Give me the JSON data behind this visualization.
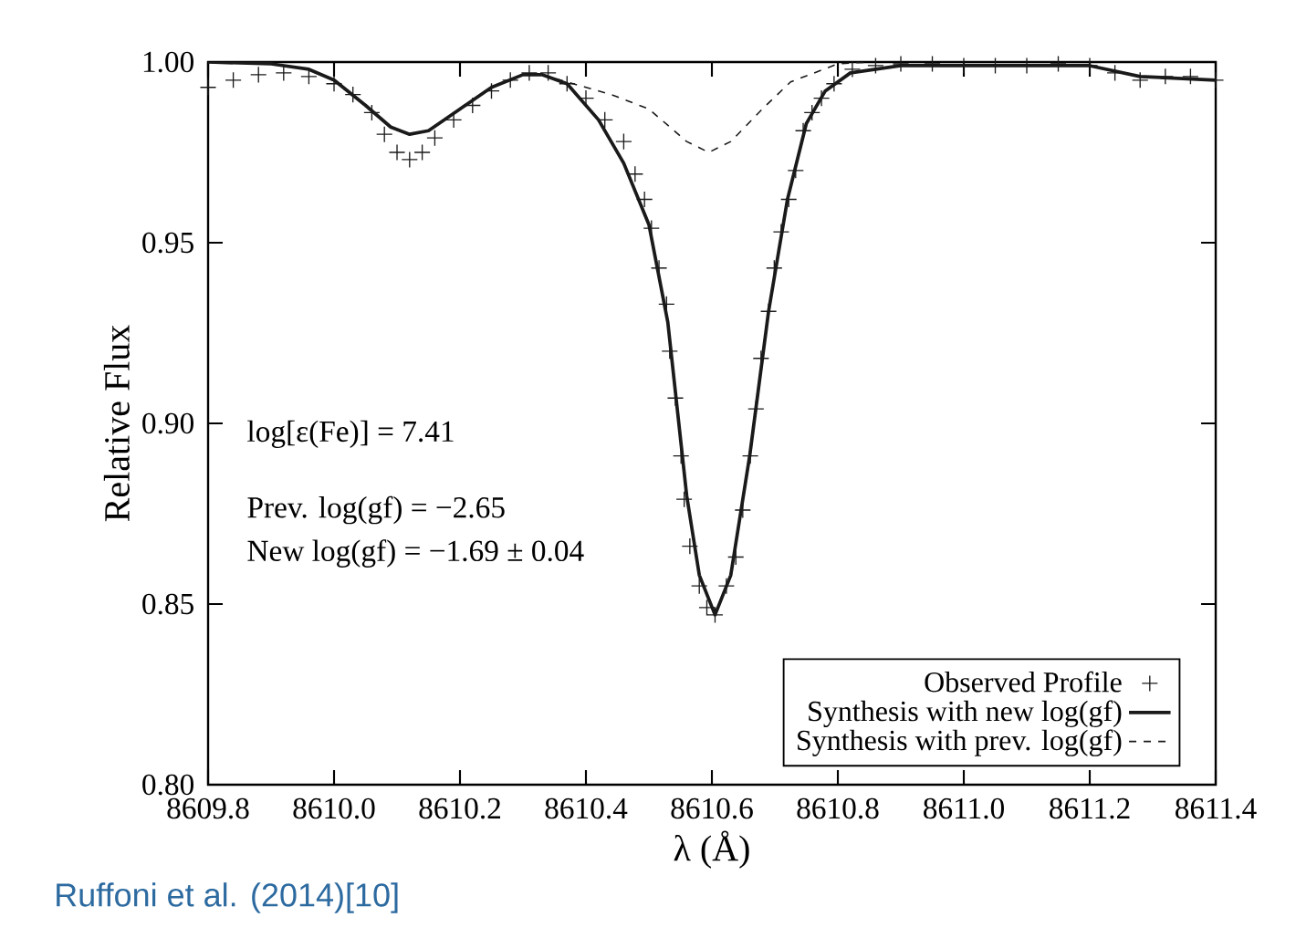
{
  "chart_data": {
    "type": "line",
    "xlabel": "λ (Å)",
    "ylabel": "Relative Flux",
    "xlim": [
      8609.8,
      8611.4
    ],
    "ylim": [
      0.8,
      1.0
    ],
    "xticks": [
      {
        "value": 8609.8,
        "label": "8609.8"
      },
      {
        "value": 8610.0,
        "label": "8610.0"
      },
      {
        "value": 8610.2,
        "label": "8610.2"
      },
      {
        "value": 8610.4,
        "label": "8610.4"
      },
      {
        "value": 8610.6,
        "label": "8610.6"
      },
      {
        "value": 8610.8,
        "label": "8610.8"
      },
      {
        "value": 8611.0,
        "label": "8611.0"
      },
      {
        "value": 8611.2,
        "label": "8611.2"
      },
      {
        "value": 8611.4,
        "label": "8611.4"
      }
    ],
    "yticks": [
      {
        "value": 0.8,
        "label": "0.80"
      },
      {
        "value": 0.85,
        "label": "0.85"
      },
      {
        "value": 0.9,
        "label": "0.90"
      },
      {
        "value": 0.95,
        "label": "0.95"
      },
      {
        "value": 1.0,
        "label": "1.00"
      }
    ],
    "legend": "bottom right",
    "annotations": [
      "log[ε(Fe)] = 7.41",
      "Prev. log(gf) = −2.65",
      "New log(gf) = −1.69 ± 0.04",
      "Ruffoni et al. (2014)[10]"
    ],
    "series": [
      {
        "name": "Observed Profile",
        "type": "scatter",
        "marker": "cross",
        "color": "#1a1a1a",
        "x": [
          8609.8,
          8609.84,
          8609.88,
          8609.92,
          8609.96,
          8610.0,
          8610.03,
          8610.06,
          8610.08,
          8610.1,
          8610.12,
          8610.14,
          8610.16,
          8610.19,
          8610.22,
          8610.25,
          8610.28,
          8610.31,
          8610.34,
          8610.37,
          8610.4,
          8610.43,
          8610.46,
          8610.478,
          8610.493,
          8610.504,
          8610.516,
          8610.528,
          8610.533,
          8610.542,
          8610.551,
          8610.556,
          8610.565,
          8610.58,
          8610.592,
          8610.605,
          8610.623,
          8610.638,
          8610.649,
          8610.661,
          8610.67,
          8610.678,
          8610.69,
          8610.699,
          8610.71,
          8610.722,
          8610.733,
          8610.745,
          8610.759,
          8610.774,
          8610.794,
          8610.823,
          8610.86,
          8610.9,
          8610.95,
          8611.0,
          8611.05,
          8611.1,
          8611.15,
          8611.2,
          8611.24,
          8611.28,
          8611.32,
          8611.36,
          8611.4
        ],
        "values": [
          0.993,
          0.995,
          0.9965,
          0.997,
          0.996,
          0.994,
          0.991,
          0.986,
          0.98,
          0.975,
          0.973,
          0.975,
          0.979,
          0.984,
          0.988,
          0.992,
          0.995,
          0.997,
          0.997,
          0.994,
          0.99,
          0.984,
          0.978,
          0.969,
          0.962,
          0.954,
          0.943,
          0.933,
          0.92,
          0.907,
          0.891,
          0.879,
          0.866,
          0.855,
          0.849,
          0.847,
          0.855,
          0.863,
          0.876,
          0.891,
          0.904,
          0.918,
          0.931,
          0.943,
          0.953,
          0.962,
          0.97,
          0.981,
          0.986,
          0.99,
          0.994,
          0.998,
          0.999,
          0.9995,
          0.9995,
          0.999,
          0.999,
          0.999,
          0.9995,
          0.999,
          0.997,
          0.995,
          0.996,
          0.996,
          0.995
        ]
      },
      {
        "name": "Synthesis with new log(gf)",
        "marker": "none",
        "line_style": "solid",
        "color": "#1a1a1a",
        "x": [
          8609.8,
          8609.9,
          8609.96,
          8610.0,
          8610.05,
          8610.09,
          8610.12,
          8610.15,
          8610.2,
          8610.25,
          8610.3,
          8610.33,
          8610.37,
          8610.42,
          8610.46,
          8610.5,
          8610.53,
          8610.56,
          8610.58,
          8610.605,
          8610.63,
          8610.66,
          8610.69,
          8610.72,
          8610.75,
          8610.78,
          8610.82,
          8610.9,
          8611.0,
          8611.1,
          8611.2,
          8611.28,
          8611.4
        ],
        "values": [
          1.0,
          0.9995,
          0.998,
          0.995,
          0.988,
          0.982,
          0.98,
          0.981,
          0.987,
          0.993,
          0.9965,
          0.9965,
          0.994,
          0.984,
          0.972,
          0.955,
          0.928,
          0.88,
          0.858,
          0.847,
          0.858,
          0.891,
          0.931,
          0.962,
          0.983,
          0.992,
          0.997,
          0.999,
          0.999,
          0.999,
          0.999,
          0.996,
          0.995
        ]
      },
      {
        "name": "Synthesis with prev. log(gf)",
        "marker": "none",
        "line_style": "dashed",
        "color": "#1a1a1a",
        "x": [
          8610.33,
          8610.4,
          8610.44,
          8610.5,
          8610.56,
          8610.595,
          8610.63,
          8610.68,
          8610.725,
          8610.8,
          8610.85
        ],
        "values": [
          0.9965,
          0.993,
          0.991,
          0.987,
          0.978,
          0.975,
          0.978,
          0.987,
          0.9945,
          0.9995,
          1.0
        ]
      }
    ]
  }
}
